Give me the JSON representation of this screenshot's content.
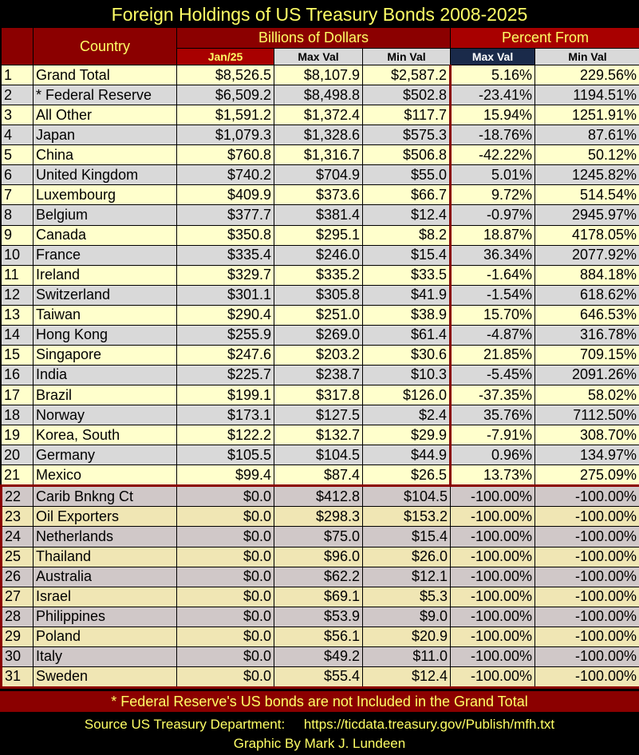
{
  "title": "Foreign Holdings of US Treasury Bonds 2008-2025",
  "header": {
    "country": "Country",
    "billions": "Billions of Dollars",
    "percent_from": "Percent From",
    "jan25": "Jan/25",
    "max_val": "Max Val",
    "min_val": "Min Val",
    "pct_max": "Max Val",
    "pct_min": "Min Val"
  },
  "rows": [
    [
      "1",
      "Grand Total",
      "$8,526.5",
      "$8,107.9",
      "$2,587.2",
      "5.16%",
      "229.56%"
    ],
    [
      "2",
      "* Federal Reserve",
      "$6,509.2",
      "$8,498.8",
      "$502.8",
      "-23.41%",
      "1194.51%"
    ],
    [
      "3",
      "All Other",
      "$1,591.2",
      "$1,372.4",
      "$117.7",
      "15.94%",
      "1251.91%"
    ],
    [
      "4",
      "Japan",
      "$1,079.3",
      "$1,328.6",
      "$575.3",
      "-18.76%",
      "87.61%"
    ],
    [
      "5",
      "China",
      "$760.8",
      "$1,316.7",
      "$506.8",
      "-42.22%",
      "50.12%"
    ],
    [
      "6",
      "United Kingdom",
      "$740.2",
      "$704.9",
      "$55.0",
      "5.01%",
      "1245.82%"
    ],
    [
      "7",
      "Luxembourg",
      "$409.9",
      "$373.6",
      "$66.7",
      "9.72%",
      "514.54%"
    ],
    [
      "8",
      "Belgium",
      "$377.7",
      "$381.4",
      "$12.4",
      "-0.97%",
      "2945.97%"
    ],
    [
      "9",
      "Canada",
      "$350.8",
      "$295.1",
      "$8.2",
      "18.87%",
      "4178.05%"
    ],
    [
      "10",
      "France",
      "$335.4",
      "$246.0",
      "$15.4",
      "36.34%",
      "2077.92%"
    ],
    [
      "11",
      "Ireland",
      "$329.7",
      "$335.2",
      "$33.5",
      "-1.64%",
      "884.18%"
    ],
    [
      "12",
      "Switzerland",
      "$301.1",
      "$305.8",
      "$41.9",
      "-1.54%",
      "618.62%"
    ],
    [
      "13",
      "Taiwan",
      "$290.4",
      "$251.0",
      "$38.9",
      "15.70%",
      "646.53%"
    ],
    [
      "14",
      "Hong Kong",
      "$255.9",
      "$269.0",
      "$61.4",
      "-4.87%",
      "316.78%"
    ],
    [
      "15",
      "Singapore",
      "$247.6",
      "$203.2",
      "$30.6",
      "21.85%",
      "709.15%"
    ],
    [
      "16",
      "India",
      "$225.7",
      "$238.7",
      "$10.3",
      "-5.45%",
      "2091.26%"
    ],
    [
      "17",
      "Brazil",
      "$199.1",
      "$317.8",
      "$126.0",
      "-37.35%",
      "58.02%"
    ],
    [
      "18",
      "Norway",
      "$173.1",
      "$127.5",
      "$2.4",
      "35.76%",
      "7112.50%"
    ],
    [
      "19",
      "Korea, South",
      "$122.2",
      "$132.7",
      "$29.9",
      "-7.91%",
      "308.70%"
    ],
    [
      "20",
      "Germany",
      "$105.5",
      "$104.5",
      "$44.9",
      "0.96%",
      "134.97%"
    ],
    [
      "21",
      "Mexico",
      "$99.4",
      "$87.4",
      "$26.5",
      "13.73%",
      "275.09%"
    ],
    [
      "22",
      "Carib Bnkng Ct",
      "$0.0",
      "$412.8",
      "$104.5",
      "-100.00%",
      "-100.00%"
    ],
    [
      "23",
      "Oil Exporters",
      "$0.0",
      "$298.3",
      "$153.2",
      "-100.00%",
      "-100.00%"
    ],
    [
      "24",
      "Netherlands",
      "$0.0",
      "$75.0",
      "$15.4",
      "-100.00%",
      "-100.00%"
    ],
    [
      "25",
      "Thailand",
      "$0.0",
      "$96.0",
      "$26.0",
      "-100.00%",
      "-100.00%"
    ],
    [
      "26",
      "Australia",
      "$0.0",
      "$62.2",
      "$12.1",
      "-100.00%",
      "-100.00%"
    ],
    [
      "27",
      "Israel",
      "$0.0",
      "$69.1",
      "$5.3",
      "-100.00%",
      "-100.00%"
    ],
    [
      "28",
      "Philippines",
      "$0.0",
      "$53.9",
      "$9.0",
      "-100.00%",
      "-100.00%"
    ],
    [
      "29",
      "Poland",
      "$0.0",
      "$56.1",
      "$20.9",
      "-100.00%",
      "-100.00%"
    ],
    [
      "30",
      "Italy",
      "$0.0",
      "$49.2",
      "$11.0",
      "-100.00%",
      "-100.00%"
    ],
    [
      "31",
      "Sweden",
      "$0.0",
      "$55.4",
      "$12.4",
      "-100.00%",
      "-100.00%"
    ]
  ],
  "footnote": "* Federal Reserve's US bonds are not Included in the Grand Total",
  "source_label": "Source US Treasury Department:",
  "source_url": "https://ticdata.treasury.gov/Publish/mfh.txt",
  "byline": "Graphic By Mark J. Lundeen"
}
